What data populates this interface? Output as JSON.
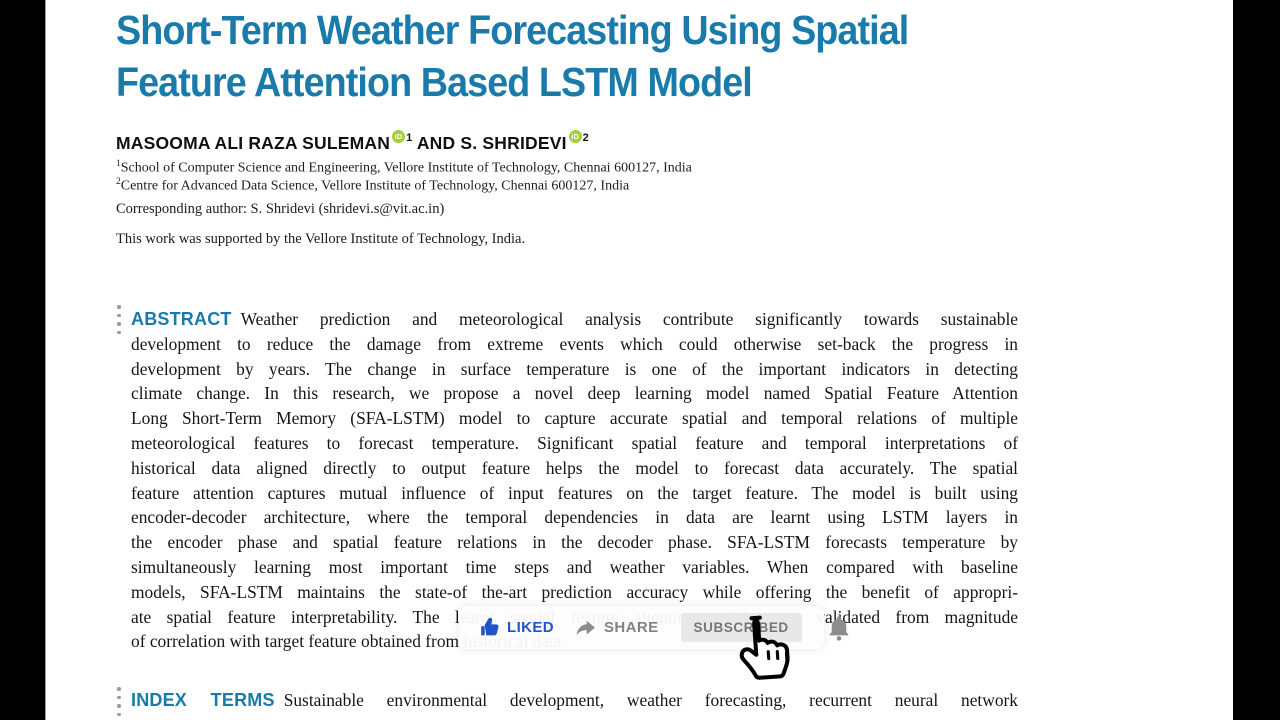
{
  "paper": {
    "title_line1": "Short-Term Weather Forecasting Using Spatial",
    "title_line2": "Feature Attention Based LSTM Model",
    "authors": {
      "author1": "MASOOMA ALI RAZA SULEMAN",
      "author1_sup": "1",
      "separator": " AND S. SHRIDEVI",
      "author2_sup": "2",
      "orcid_label": "iD"
    },
    "affiliations": [
      {
        "sup": "1",
        "text": "School of Computer Science and Engineering, Vellore Institute of Technology, Chennai 600127, India"
      },
      {
        "sup": "2",
        "text": "Centre for Advanced Data Science, Vellore Institute of Technology, Chennai 600127, India"
      }
    ],
    "corresponding": "Corresponding author: S. Shridevi (shridevi.s@vit.ac.in)",
    "funding": "This work was supported by the Vellore Institute of Technology, India.",
    "abstract": {
      "heading": "ABSTRACT",
      "first_line": "Weather prediction and meteorological analysis contribute significantly towards sustainable",
      "lines": [
        "development to reduce the damage from extreme events which could otherwise set-back the progress in",
        "development by years. The change in surface temperature is one of the important indicators in detecting",
        "climate change. In this research, we propose a novel deep learning model named Spatial Feature Attention",
        "Long Short-Term Memory (SFA-LSTM) model to capture accurate spatial and temporal relations of multiple",
        "meteorological features to forecast temperature. Significant spatial feature and temporal interpretations of",
        "historical data aligned directly to output feature helps the model to forecast data accurately. The spatial",
        "feature attention captures mutual influence of input features on the target feature. The model is built using",
        "encoder-decoder architecture, where the temporal dependencies in data are learnt using LSTM layers in",
        "the encoder phase and spatial feature relations in the decoder phase. SFA-LSTM forecasts temperature by",
        "simultaneously learning most important time steps and weather variables. When compared with baseline",
        "models, SFA-LSTM maintains the state-of the-art prediction accuracy while offering the benefit of appropri-",
        "ate spatial feature interpretability. The learnt spatial feature attention weights are validated from magnitude"
      ],
      "last_line": "of correlation with target feature obtained from historical data."
    },
    "index_terms": {
      "heading": "INDEX TERMS",
      "text": "Sustainable environmental development, weather forecasting, recurrent neural network"
    }
  },
  "overlay": {
    "liked_label": "LIKED",
    "share_label": "SHARE",
    "subscribed_label": "SUBSCRIBED",
    "icons": [
      "thumbs-up-icon",
      "share-arrow-icon",
      "bell-icon",
      "hand-cursor-icon"
    ]
  },
  "colors": {
    "heading_teal": "#1a7aa9",
    "liked_blue": "#1f55c8",
    "orcid_green": "#a6ce39",
    "gray_icon": "#8d8d8d"
  }
}
